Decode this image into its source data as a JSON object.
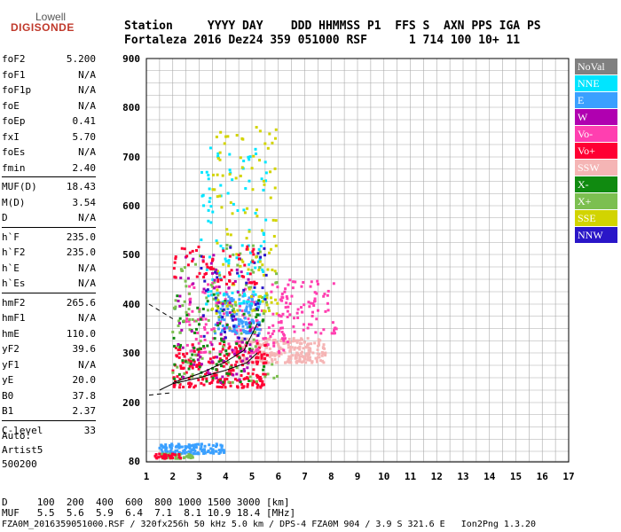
{
  "logo": {
    "top": "Lowell",
    "main": "DIGISONDE"
  },
  "header": {
    "line1": "Station     YYYY DAY    DDD HHMMSS P1  FFS S  AXN PPS IGA PS",
    "line2": "Fortaleza 2016 Dez24 359 051000 RSF      1 714 100 10+ 11"
  },
  "params": [
    {
      "label": "foF2",
      "value": "5.200"
    },
    {
      "label": "foF1",
      "value": "N/A"
    },
    {
      "label": "foF1p",
      "value": "N/A"
    },
    {
      "label": "foE",
      "value": "N/A"
    },
    {
      "label": "foEp",
      "value": "0.41"
    },
    {
      "label": "fxI",
      "value": "5.70"
    },
    {
      "label": "foEs",
      "value": "N/A"
    },
    {
      "label": "fmin",
      "value": "2.40"
    },
    {
      "sep": true
    },
    {
      "label": "MUF(D)",
      "value": "18.43"
    },
    {
      "label": "M(D)",
      "value": "3.54"
    },
    {
      "label": "D",
      "value": "N/A"
    },
    {
      "sep": true
    },
    {
      "label": "h`F",
      "value": "235.0"
    },
    {
      "label": "h`F2",
      "value": "235.0"
    },
    {
      "label": "h`E",
      "value": "N/A"
    },
    {
      "label": "h`Es",
      "value": "N/A"
    },
    {
      "sep": true
    },
    {
      "label": "hmF2",
      "value": "265.6"
    },
    {
      "label": "hmF1",
      "value": "N/A"
    },
    {
      "label": "hmE",
      "value": "110.0"
    },
    {
      "label": "yF2",
      "value": "39.6"
    },
    {
      "label": "yF1",
      "value": "N/A"
    },
    {
      "label": "yE",
      "value": "20.0"
    },
    {
      "label": "B0",
      "value": "37.8"
    },
    {
      "label": "B1",
      "value": "2.37"
    },
    {
      "sep": true
    },
    {
      "label": "C-level",
      "value": "33"
    }
  ],
  "auto": {
    "line1": "Auto:",
    "line2": "Artist5",
    "line3": "500200"
  },
  "bottom": {
    "dline": "D     100  200  400  600  800 1000 1500 3000 [km]",
    "mufline": "MUF   5.5  5.6  5.9  6.4  7.1  8.1 10.9 18.4 [MHz]",
    "footer": "FZA0M_2016359051000.RSF / 320fx256h 50 kHz 5.0 km / DPS-4 FZA0M 904 / 3.9 S 321.6 E   Ion2Png 1.3.20"
  },
  "legend": [
    {
      "label": "NoVal",
      "color": "#808080"
    },
    {
      "label": "NNE",
      "color": "#00e5ff"
    },
    {
      "label": "E",
      "color": "#3aa0ff"
    },
    {
      "label": "W",
      "color": "#b000b0"
    },
    {
      "label": "Vo-",
      "color": "#ff3fb0"
    },
    {
      "label": "Vo+",
      "color": "#ff0033"
    },
    {
      "label": "SSW",
      "color": "#f5b5b5"
    },
    {
      "label": "X-",
      "color": "#108a10"
    },
    {
      "label": "X+",
      "color": "#7cbf50"
    },
    {
      "label": "SSE",
      "color": "#d2d400"
    },
    {
      "label": "NNW",
      "color": "#2a16c8"
    }
  ],
  "chart_data": {
    "type": "scatter",
    "x_ticks": [
      1,
      2,
      3,
      4,
      5,
      6,
      7,
      8,
      9,
      10,
      11,
      12,
      13,
      14,
      15,
      16,
      17
    ],
    "y_ticks": [
      80,
      200,
      300,
      400,
      500,
      600,
      700,
      800,
      900
    ],
    "y_tick_pos": [
      520,
      454,
      398,
      343,
      287,
      232,
      177,
      121,
      66
    ],
    "xlim": [
      1,
      17
    ],
    "ylim": [
      80,
      900
    ],
    "clusters": [
      {
        "color": "#f5b5b5",
        "x": [
          4.5,
          7.8
        ],
        "y": [
          280,
          330
        ],
        "n": 260
      },
      {
        "color": "#ff0033",
        "x": [
          2.0,
          5.6
        ],
        "y": [
          230,
          320
        ],
        "n": 220
      },
      {
        "color": "#ff3fb0",
        "x": [
          2.5,
          6.5
        ],
        "y": [
          300,
          450
        ],
        "n": 160
      },
      {
        "color": "#3aa0ff",
        "x": [
          3.6,
          5.3
        ],
        "y": [
          340,
          420
        ],
        "n": 120
      },
      {
        "color": "#00e5ff",
        "x": [
          3.0,
          5.6
        ],
        "y": [
          400,
          720
        ],
        "n": 110
      },
      {
        "color": "#108a10",
        "x": [
          2.0,
          5.5
        ],
        "y": [
          240,
          420
        ],
        "n": 90
      },
      {
        "color": "#7cbf50",
        "x": [
          2.0,
          6.0
        ],
        "y": [
          240,
          520
        ],
        "n": 110
      },
      {
        "color": "#d2d400",
        "x": [
          3.5,
          6.0
        ],
        "y": [
          380,
          760
        ],
        "n": 110
      },
      {
        "color": "#b000b0",
        "x": [
          2.0,
          5.0
        ],
        "y": [
          240,
          500
        ],
        "n": 80
      },
      {
        "color": "#2a16c8",
        "x": [
          3.0,
          5.6
        ],
        "y": [
          320,
          520
        ],
        "n": 40
      },
      {
        "color": "#ff0033",
        "x": [
          2.0,
          5.2
        ],
        "y": [
          440,
          520
        ],
        "n": 60
      },
      {
        "color": "#ff3fb0",
        "x": [
          6.0,
          8.2
        ],
        "y": [
          340,
          450
        ],
        "n": 70
      },
      {
        "color": "#3aa0ff",
        "x": [
          1.5,
          4.0
        ],
        "y": [
          95,
          115
        ],
        "n": 120
      },
      {
        "color": "#7cbf50",
        "x": [
          1.5,
          2.8
        ],
        "y": [
          85,
          95
        ],
        "n": 50
      },
      {
        "color": "#ff0033",
        "x": [
          1.3,
          2.3
        ],
        "y": [
          85,
          95
        ],
        "n": 30
      }
    ],
    "profile_line": {
      "x": [
        1.5,
        2.0,
        3.0,
        4.0,
        4.8,
        5.2
      ],
      "y": [
        225,
        238,
        250,
        265,
        280,
        300
      ]
    },
    "profile_upper": {
      "x": [
        2.0,
        3.0,
        4.0,
        4.7,
        5.2
      ],
      "y": [
        240,
        258,
        282,
        305,
        360
      ]
    },
    "dashed_lines": [
      {
        "x": [
          1.1,
          2.0
        ],
        "y": [
          400,
          370
        ]
      },
      {
        "x": [
          1.1,
          2.0
        ],
        "y": [
          215,
          220
        ]
      }
    ]
  }
}
